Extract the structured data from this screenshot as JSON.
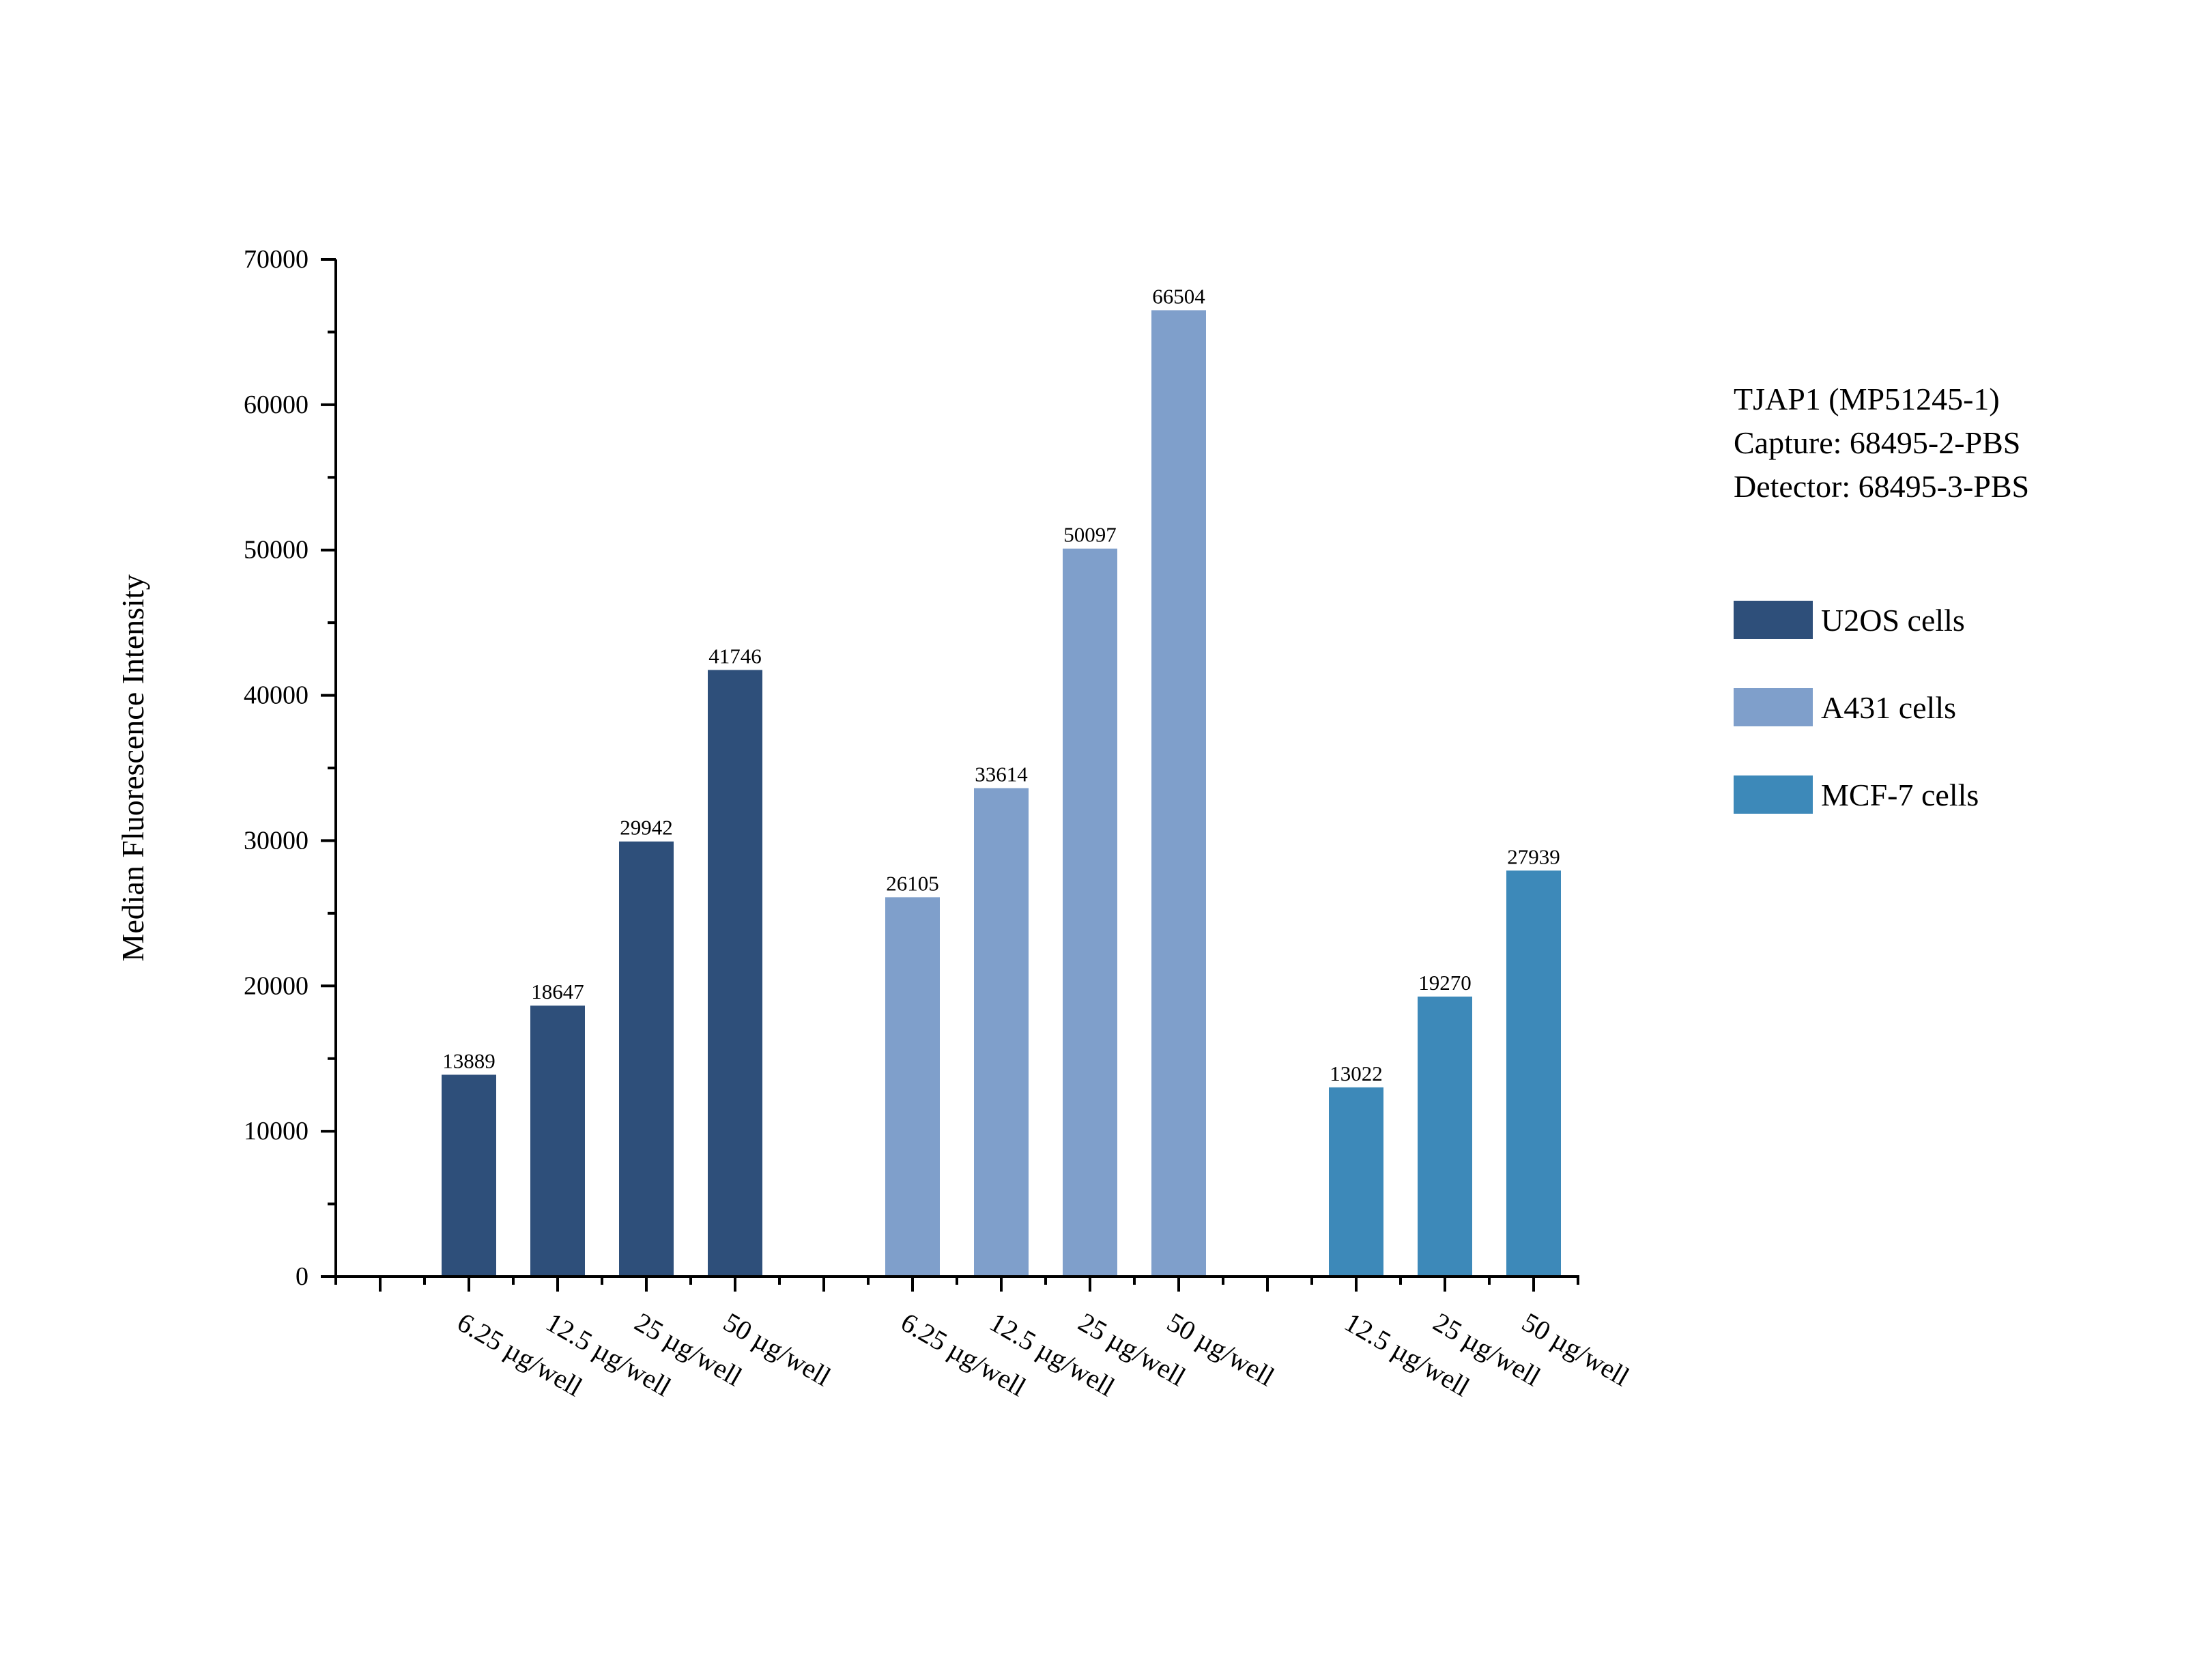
{
  "chart_data": {
    "type": "bar",
    "ylabel": "Median Fluorescence Intensity",
    "xlabel": "",
    "ylim": [
      0,
      70000
    ],
    "yticks": [
      0,
      10000,
      20000,
      30000,
      40000,
      50000,
      60000,
      70000
    ],
    "ytick_labels": [
      "0",
      "10000",
      "20000",
      "30000",
      "40000",
      "50000",
      "60000",
      "70000"
    ],
    "info_lines": [
      "TJAP1 (MP51245-1)",
      "Capture: 68495-2-PBS",
      "Detector: 68495-3-PBS"
    ],
    "legend_position": "right",
    "groups": [
      {
        "name": "U2OS cells",
        "color": "#2e4f7a",
        "categories": [
          "6.25 µg/well",
          "12.5 µg/well",
          "25 µg/well",
          "50 µg/well"
        ],
        "values": [
          13889,
          18647,
          29942,
          41746
        ],
        "value_labels": [
          "13889",
          "18647",
          "29942",
          "41746"
        ]
      },
      {
        "name": "A431 cells",
        "color": "#7f9fcb",
        "categories": [
          "6.25 µg/well",
          "12.5 µg/well",
          "25 µg/well",
          "50 µg/well"
        ],
        "values": [
          26105,
          33614,
          50097,
          66504
        ],
        "value_labels": [
          "26105",
          "33614",
          "50097",
          "66504"
        ]
      },
      {
        "name": "MCF-7 cells",
        "color": "#3d89b9",
        "categories": [
          "12.5 µg/well",
          "25 µg/well",
          "50 µg/well"
        ],
        "values": [
          13022,
          19270,
          27939
        ],
        "value_labels": [
          "13022",
          "19270",
          "27939"
        ]
      }
    ]
  }
}
